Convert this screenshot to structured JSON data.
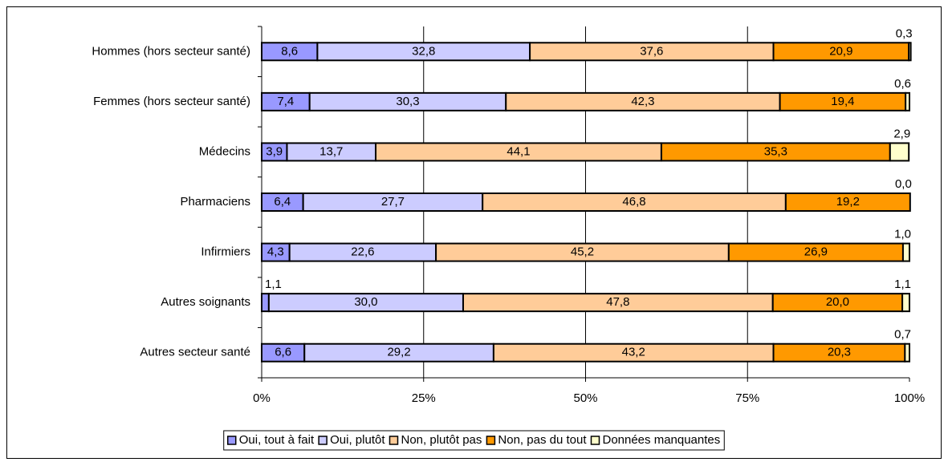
{
  "chart_data": {
    "type": "stacked_bar_horizontal",
    "categories": [
      "Hommes (hors secteur santé)",
      "Femmes (hors secteur santé)",
      "Médecins",
      "Pharmaciens",
      "Infirmiers",
      "Autres soignants",
      "Autres secteur santé"
    ],
    "series": [
      {
        "name": "Oui, tout à fait",
        "color": "#9999ff",
        "values": [
          8.6,
          7.4,
          3.9,
          6.4,
          4.3,
          1.1,
          6.6
        ],
        "value_labels": [
          "8,6",
          "7,4",
          "3,9",
          "6,4",
          "4,3",
          "1,1",
          "6,6"
        ]
      },
      {
        "name": "Oui, plutôt",
        "color": "#ccccff",
        "values": [
          32.8,
          30.3,
          13.7,
          27.7,
          22.6,
          30.0,
          29.2
        ],
        "value_labels": [
          "32,8",
          "30,3",
          "13,7",
          "27,7",
          "22,6",
          "30,0",
          "29,2"
        ]
      },
      {
        "name": "Non, plutôt pas",
        "color": "#ffcc99",
        "values": [
          37.6,
          42.3,
          44.1,
          46.8,
          45.2,
          47.8,
          43.2
        ],
        "value_labels": [
          "37,6",
          "42,3",
          "44,1",
          "46,8",
          "45,2",
          "47,8",
          "43,2"
        ]
      },
      {
        "name": "Non, pas du tout",
        "color": "#ff9900",
        "values": [
          20.9,
          19.4,
          35.3,
          19.2,
          26.9,
          20.0,
          20.3
        ],
        "value_labels": [
          "20,9",
          "19,4",
          "35,3",
          "19,2",
          "26,9",
          "20,0",
          "20,3"
        ]
      },
      {
        "name": "Données manquantes",
        "color": "#ffffcc",
        "values": [
          0.3,
          0.6,
          2.9,
          0.0,
          1.0,
          1.1,
          0.7
        ],
        "value_labels": [
          "0,3",
          "0,6",
          "2,9",
          "0,0",
          "1,0",
          "1,1",
          "0,7"
        ]
      }
    ],
    "xlim": [
      0,
      100
    ],
    "xticks": [
      {
        "value": 0,
        "label": "0%"
      },
      {
        "value": 25,
        "label": "25%"
      },
      {
        "value": 50,
        "label": "50%"
      },
      {
        "value": 75,
        "label": "75%"
      },
      {
        "value": 100,
        "label": "100%"
      }
    ],
    "grid": true,
    "legend": "bottom"
  }
}
